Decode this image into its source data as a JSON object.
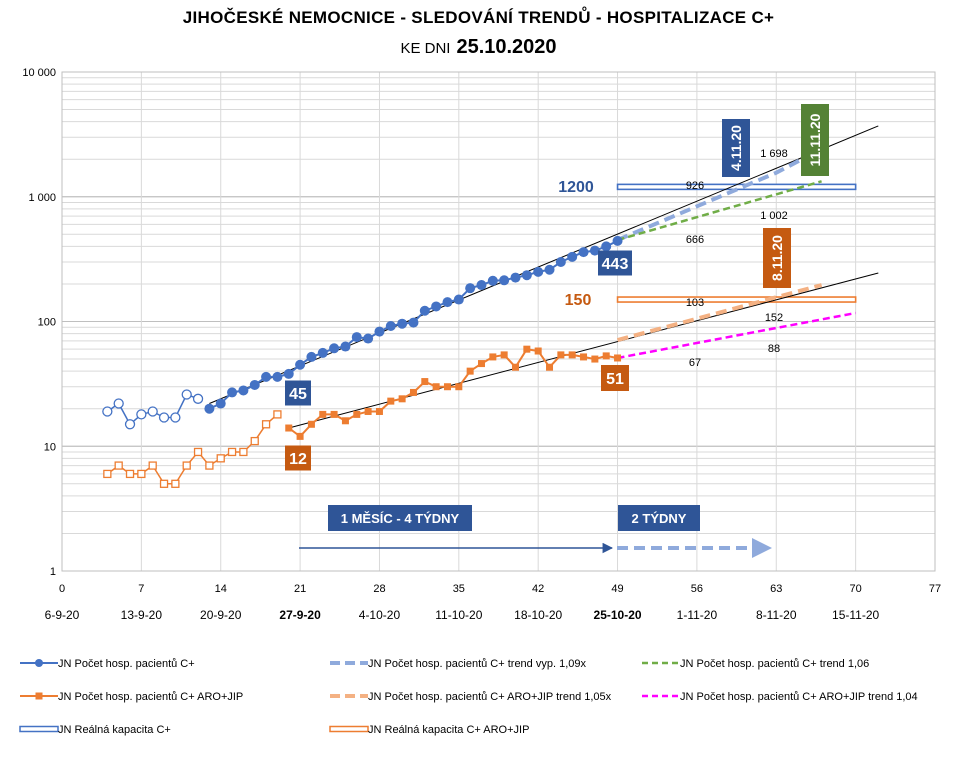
{
  "title": "JIHOČESKÉ  NEMOCNICE  -  SLEDOVÁNÍ  TRENDŮ  -  HOSPITALIZACE  C+",
  "subtitle_prefix": "KE DNI",
  "subtitle_date": "25.10.2020",
  "chart_data": {
    "type": "line",
    "yscale": "log",
    "ylim": [
      1,
      10000
    ],
    "xlim": [
      0,
      77
    ],
    "grid": true,
    "legend_position": "bottom",
    "x_ticks": [
      0,
      7,
      14,
      21,
      28,
      35,
      42,
      49,
      56,
      63,
      70,
      77
    ],
    "y_tick_labels": [
      "1",
      "10",
      "100",
      "1 000",
      "10 000"
    ],
    "date_labels": [
      {
        "x": 0,
        "label": "6-9-20"
      },
      {
        "x": 7,
        "label": "13-9-20"
      },
      {
        "x": 14,
        "label": "20-9-20"
      },
      {
        "x": 21,
        "label": "27-9-20",
        "bold": true
      },
      {
        "x": 28,
        "label": "4-10-20"
      },
      {
        "x": 35,
        "label": "11-10-20"
      },
      {
        "x": 42,
        "label": "18-10-20"
      },
      {
        "x": 49,
        "label": "25-10-20",
        "bold": true
      },
      {
        "x": 56,
        "label": "1-11-20"
      },
      {
        "x": 63,
        "label": "8-11-20"
      },
      {
        "x": 70,
        "label": "15-11-20"
      }
    ],
    "colors": {
      "blue": "#4472c4",
      "darkblue": "#2f5597",
      "orange": "#ed7d31",
      "darkorange": "#c55a11",
      "green": "#70ad47",
      "darkgreen": "#548235",
      "magenta": "#ff00ff",
      "lightblue": "#8faadc",
      "lightorange": "#f4b183"
    },
    "series": {
      "blue_hist_x": [
        4,
        5,
        6,
        7,
        8,
        9,
        10,
        11,
        12
      ],
      "blue_hist_y": [
        19,
        22,
        15,
        18,
        19,
        17,
        17,
        26,
        24
      ],
      "blue_x": [
        13,
        14,
        15,
        16,
        17,
        18,
        19,
        20,
        21,
        22,
        23,
        24,
        25,
        26,
        27,
        28,
        29,
        30,
        31,
        32,
        33,
        34,
        35,
        36,
        37,
        38,
        39,
        40,
        41,
        42,
        43,
        44,
        45,
        46,
        47,
        48,
        49
      ],
      "blue_y": [
        20,
        22,
        27,
        28,
        31,
        36,
        36,
        38,
        45,
        52,
        56,
        61,
        63,
        75,
        73,
        83,
        92,
        96,
        98,
        122,
        132,
        143,
        150,
        185,
        196,
        212,
        214,
        225,
        235,
        250,
        260,
        300,
        330,
        360,
        370,
        400,
        443
      ],
      "orange_hist_x": [
        4,
        5,
        6,
        7,
        8,
        9,
        10,
        11,
        12,
        13,
        14,
        15,
        16,
        17,
        18,
        19
      ],
      "orange_hist_y": [
        6,
        7,
        6,
        6,
        7,
        5,
        5,
        7,
        9,
        7,
        8,
        9,
        9,
        11,
        15,
        18
      ],
      "orange_x": [
        20,
        21,
        22,
        23,
        24,
        25,
        26,
        27,
        28,
        29,
        30,
        31,
        32,
        33,
        34,
        35,
        36,
        37,
        38,
        39,
        40,
        41,
        42,
        43,
        44,
        45,
        46,
        47,
        48,
        49
      ],
      "orange_y": [
        14,
        12,
        15,
        18,
        18,
        16,
        18,
        19,
        19,
        23,
        24,
        27,
        33,
        30,
        30,
        30,
        40,
        46,
        52,
        54,
        43,
        60,
        58,
        43,
        54,
        54,
        52,
        50,
        53,
        51
      ],
      "blue_fit": [
        [
          13,
          22
        ],
        [
          72,
          3700
        ]
      ],
      "orange_fit": [
        [
          20,
          14
        ],
        [
          72,
          245
        ]
      ],
      "blue_trend_calc": [
        [
          49,
          450
        ],
        [
          63,
          1560
        ],
        [
          67,
          2420
        ]
      ],
      "blue_trend_green": [
        [
          49,
          450
        ],
        [
          67,
          1330
        ]
      ],
      "orange_trend_calc": [
        [
          49,
          71
        ],
        [
          67,
          196
        ]
      ],
      "orange_trend_magenta": [
        [
          49,
          51
        ],
        [
          70,
          117
        ]
      ],
      "capacity_blue": {
        "value": 1200,
        "x_range": [
          49,
          70
        ]
      },
      "capacity_orange": {
        "value": 150,
        "x_range": [
          49,
          70
        ]
      }
    },
    "annotations": {
      "cap_blue_label": "1200",
      "cap_orange_label": "150",
      "box_blue_end": "443",
      "box_blue_start": "45",
      "box_orange_start": "12",
      "box_orange_end": "51",
      "date_blue_calc": "4.11.20",
      "date_green": "11.11.20",
      "date_orange": "8.11.20",
      "v_1698": "1 698",
      "v_926": "926",
      "v_1002": "1 002",
      "v_666": "666",
      "v_103": "103",
      "v_152": "152",
      "v_88": "88",
      "v_67": "67",
      "box_month": "1 MĚSÍC - 4 TÝDNY",
      "box_weeks": "2 TÝDNY"
    },
    "legend": [
      "JN Počet hosp. pacientů C+",
      "JN Počet hosp. pacientů C+ trend vyp. 1,09x",
      "JN Počet hosp. pacientů C+ trend 1,06",
      "JN Počet hosp. pacientů C+ ARO+JIP",
      "JN Počet hosp. pacientů C+ ARO+JIP trend 1,05x",
      "JN Počet hosp. pacientů C+ ARO+JIP trend 1,04",
      "JN Reálná kapacita C+",
      "JN Reálná kapacita C+ ARO+JIP"
    ]
  }
}
